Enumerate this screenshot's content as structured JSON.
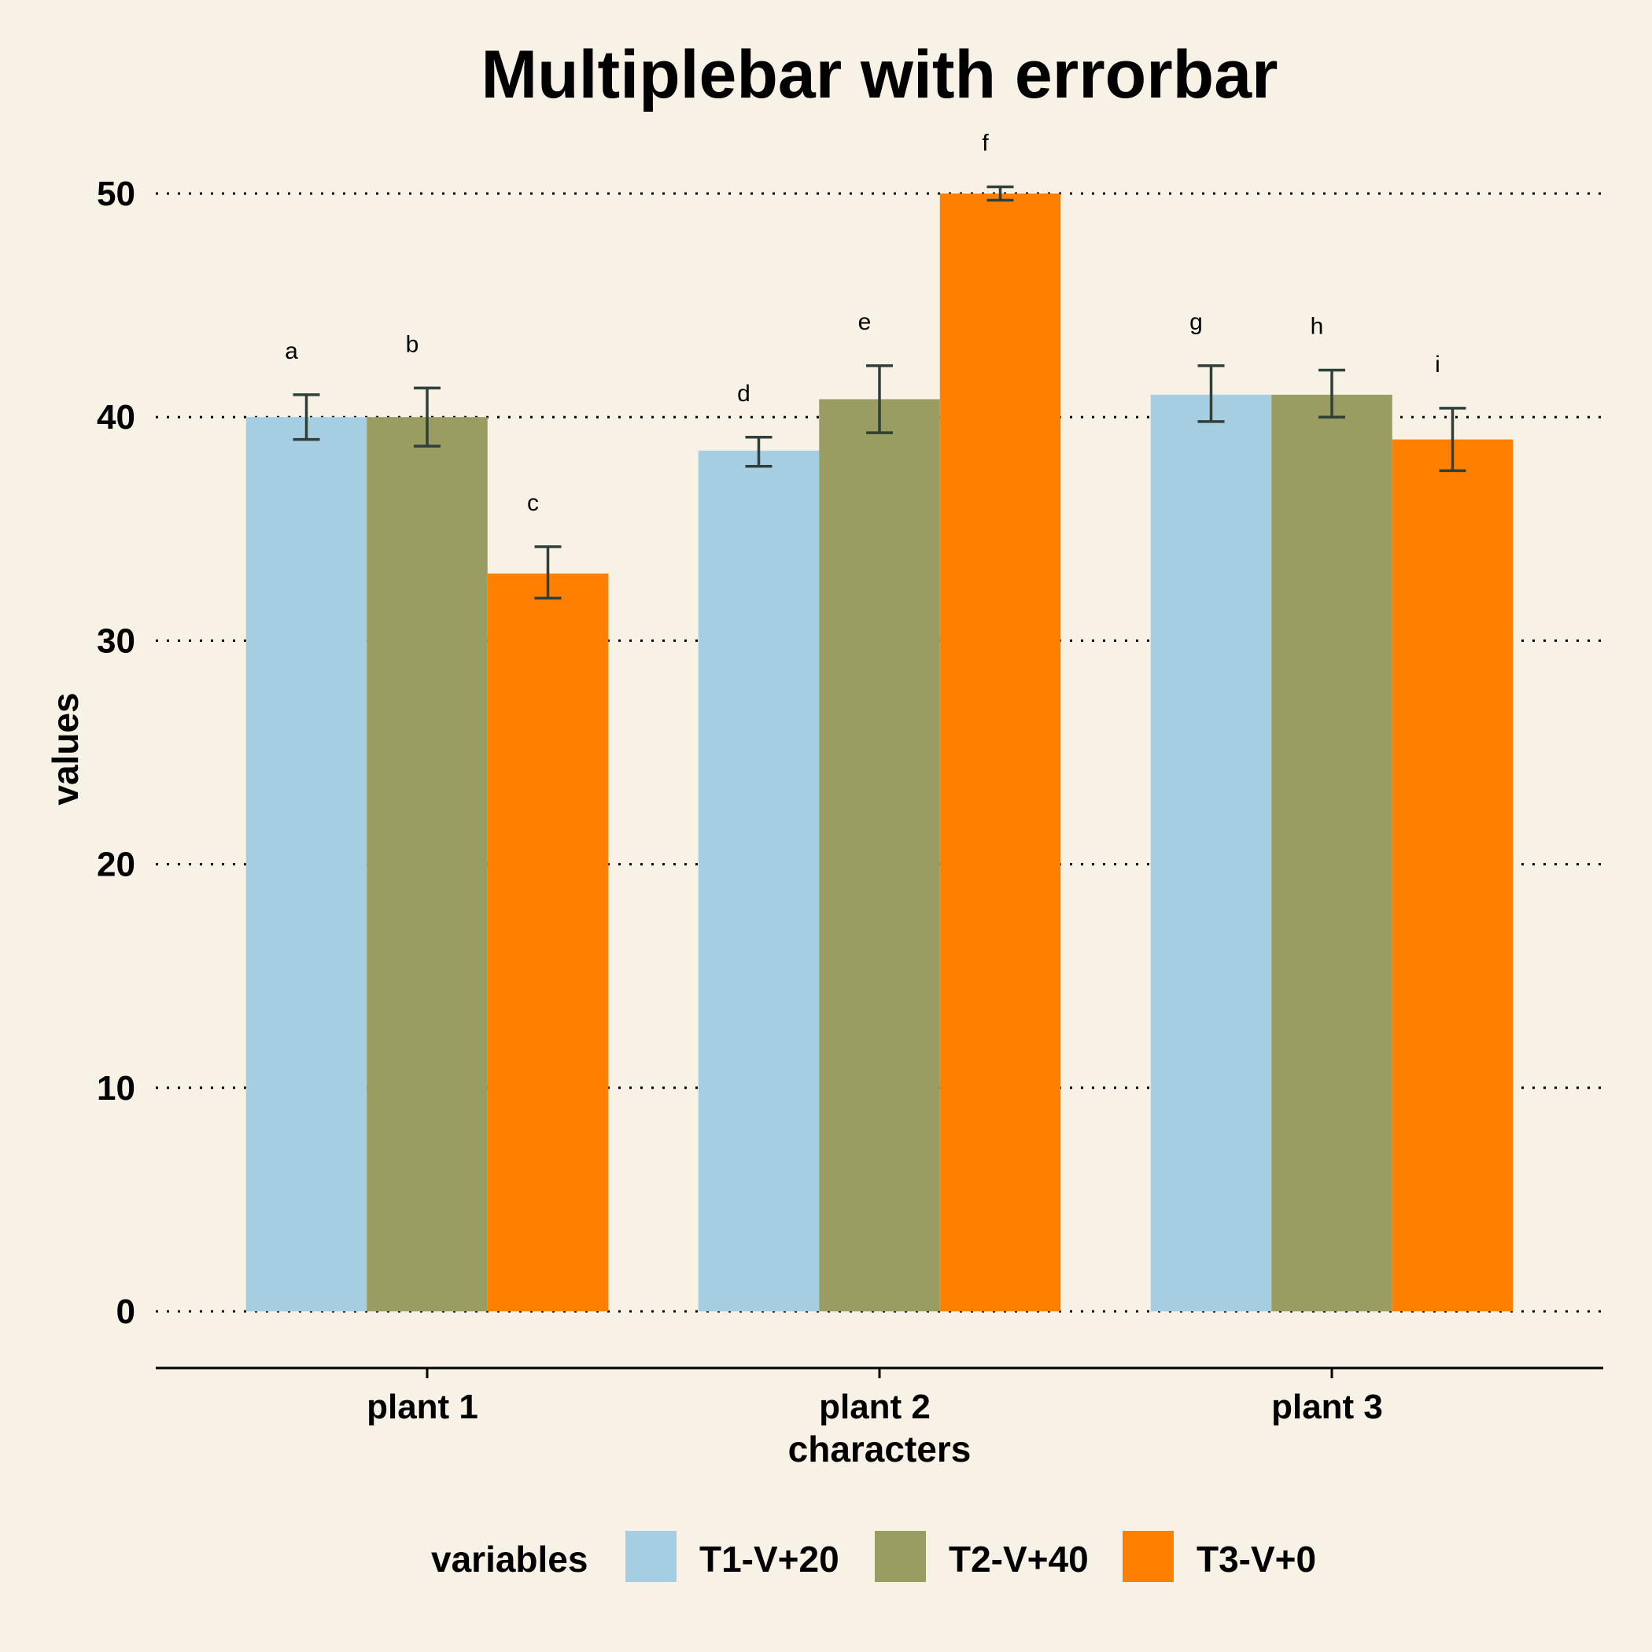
{
  "chart_data": {
    "type": "bar",
    "title": "Multiplebar with errorbar",
    "xlabel": "characters",
    "ylabel": "values",
    "categories": [
      "plant 1",
      "plant 2",
      "plant 3"
    ],
    "ylim": [
      0,
      50
    ],
    "yticks": [
      0,
      10,
      20,
      30,
      40,
      50
    ],
    "grid": "horizontal dotted",
    "legend": {
      "title": "variables",
      "placement": "bottom"
    },
    "series": [
      {
        "name": "T1-V+20",
        "color": "#a6cee3",
        "values": [
          40,
          38.5,
          41
        ],
        "error_low": [
          39,
          37.8,
          39.8
        ],
        "error_high": [
          41,
          39.1,
          42.3
        ],
        "labels": [
          "a",
          "d",
          "g"
        ]
      },
      {
        "name": "T2-V+40",
        "color": "#999d62",
        "values": [
          40,
          40.8,
          41
        ],
        "error_low": [
          38.7,
          39.3,
          40
        ],
        "error_high": [
          41.3,
          42.3,
          42.1
        ],
        "labels": [
          "b",
          "e",
          "h"
        ]
      },
      {
        "name": "T3-V+0",
        "color": "#ff7f00",
        "values": [
          33,
          50,
          39
        ],
        "error_low": [
          31.9,
          49.7,
          37.6
        ],
        "error_high": [
          34.2,
          50.3,
          40.4
        ],
        "labels": [
          "c",
          "f",
          "i"
        ]
      }
    ],
    "errorbar_color": "#2f3f3a"
  }
}
